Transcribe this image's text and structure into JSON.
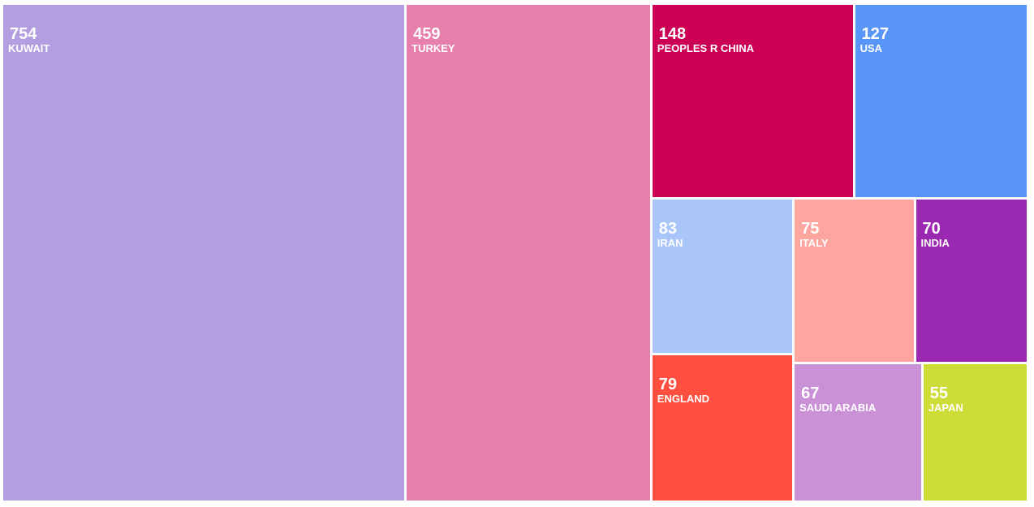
{
  "chart_data": {
    "type": "treemap",
    "items": [
      {
        "label": "KUWAIT",
        "value": 754,
        "color": "#b39fe0"
      },
      {
        "label": "TURKEY",
        "value": 459,
        "color": "#e67fab"
      },
      {
        "label": "PEOPLES R CHINA",
        "value": 148,
        "color": "#cc0055"
      },
      {
        "label": "USA",
        "value": 127,
        "color": "#5995f7"
      },
      {
        "label": "IRAN",
        "value": 83,
        "color": "#a9c5fa"
      },
      {
        "label": "ENGLAND",
        "value": 79,
        "color": "#ff4f3f"
      },
      {
        "label": "ITALY",
        "value": 75,
        "color": "#ffa59f"
      },
      {
        "label": "INDIA",
        "value": 70,
        "color": "#9b28b0"
      },
      {
        "label": "SAUDI ARABIA",
        "value": 67,
        "color": "#cb91d6"
      },
      {
        "label": "JAPAN",
        "value": 55,
        "color": "#cedc3a"
      }
    ]
  }
}
